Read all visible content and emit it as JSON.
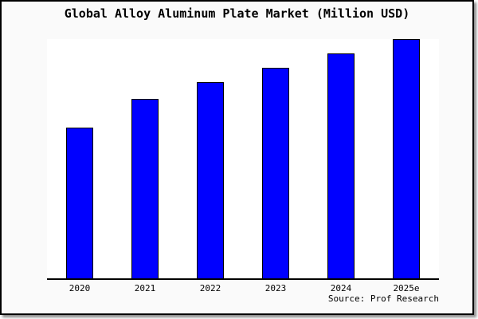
{
  "title": "Global Alloy Aluminum Plate Market (Million USD)",
  "source": "Source: Prof Research",
  "chart_data": {
    "type": "bar",
    "title": "Global Alloy Aluminum Plate Market (Million USD)",
    "categories": [
      "2020",
      "2021",
      "2022",
      "2023",
      "2024",
      "2025e"
    ],
    "values": [
      63,
      75,
      82,
      88,
      94,
      100
    ],
    "value_note": "relative bar heights, percent of tallest bar; no numeric y-axis shown in chart",
    "xlabel": "",
    "ylabel": "",
    "ylim": [
      0,
      100
    ],
    "y_axis_visible": false,
    "gridlines": false,
    "legend": "none",
    "annotation": "Source: Prof Research",
    "colors": {
      "bar_fill": "#0000ff",
      "bar_border": "#000000",
      "plot_bg": "#ffffff",
      "page_bg": "#fafafa",
      "frame": "#000000"
    }
  }
}
